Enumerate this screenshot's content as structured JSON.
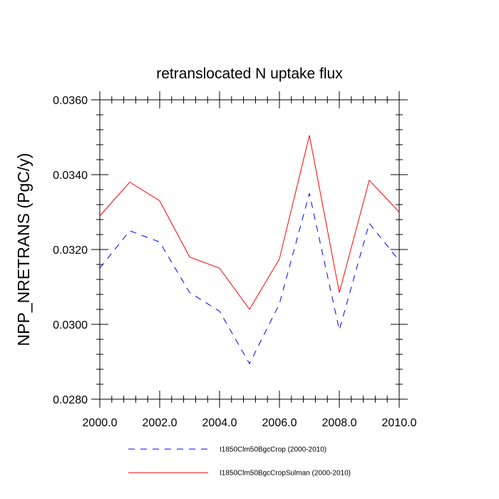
{
  "chart_data": {
    "type": "line",
    "title": "retranslocated N uptake flux",
    "xlabel": "",
    "ylabel": "NPP_NRETRANS  (PgC/y)",
    "xlim": [
      2000,
      2010
    ],
    "ylim": [
      0.028,
      0.036
    ],
    "x_ticks": [
      2000,
      2002,
      2004,
      2006,
      2008,
      2010
    ],
    "x_tick_labels": [
      "2000.0",
      "2002.0",
      "2004.0",
      "2006.0",
      "2008.0",
      "2010.0"
    ],
    "y_ticks": [
      0.028,
      0.03,
      0.032,
      0.034,
      0.036
    ],
    "y_tick_labels": [
      "0.0280",
      "0.0300",
      "0.0320",
      "0.0340",
      "0.0360"
    ],
    "grid": false,
    "legend_position": "bottom",
    "x": [
      2000,
      2001,
      2002,
      2003,
      2004,
      2005,
      2006,
      2007,
      2008,
      2009,
      2010
    ],
    "series": [
      {
        "name": "I1850Clm50BgcCrop (2000-2010)",
        "color": "#0000ff",
        "dash": "dashed",
        "values": [
          0.0315,
          0.0325,
          0.0322,
          0.03085,
          0.03035,
          0.02895,
          0.03055,
          0.0335,
          0.02985,
          0.0327,
          0.0317
        ]
      },
      {
        "name": "I1850Clm50BgcCropSulman (2000-2010)",
        "color": "#ff0000",
        "dash": "solid",
        "values": [
          0.0329,
          0.0338,
          0.0333,
          0.0318,
          0.0315,
          0.0304,
          0.03175,
          0.03505,
          0.03085,
          0.03385,
          0.033
        ]
      }
    ]
  }
}
